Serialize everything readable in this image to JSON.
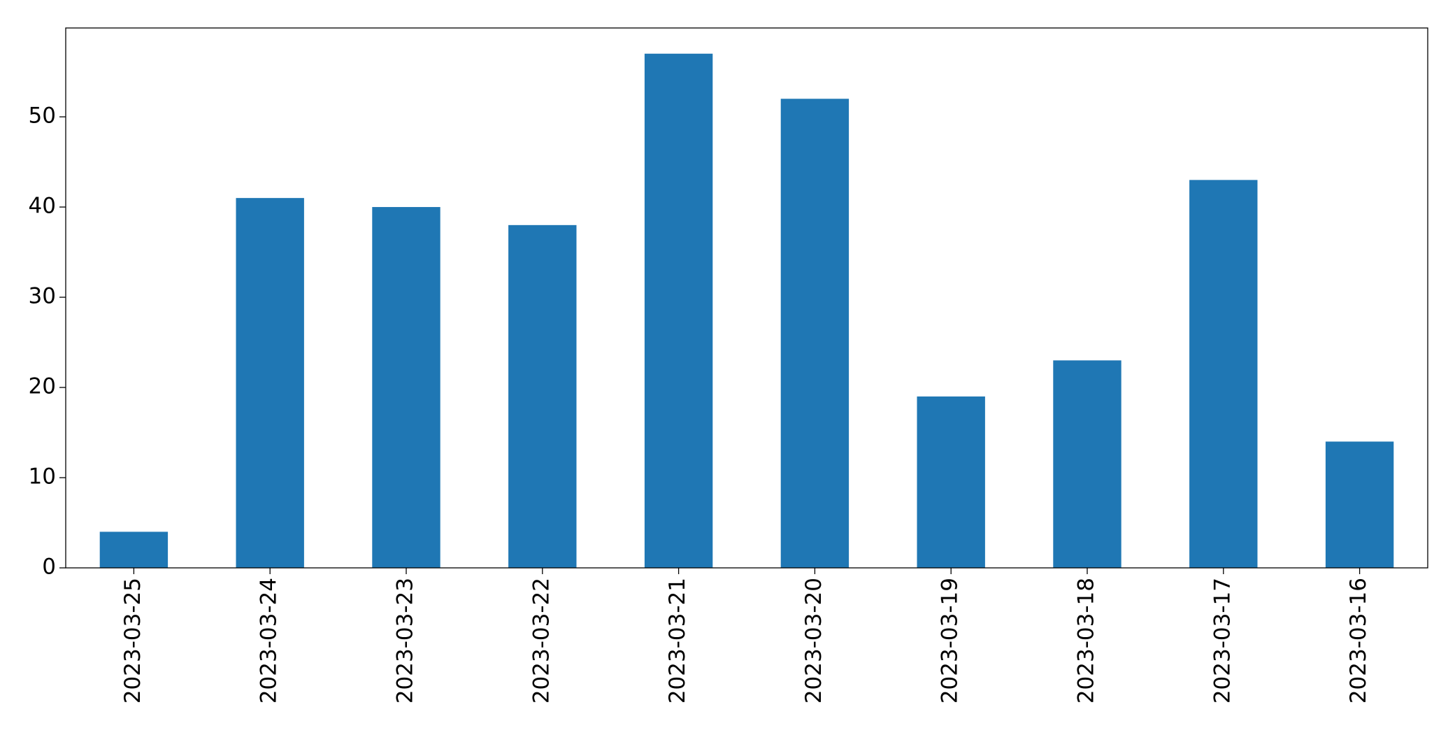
{
  "chart_data": {
    "type": "bar",
    "categories": [
      "2023-03-25",
      "2023-03-24",
      "2023-03-23",
      "2023-03-22",
      "2023-03-21",
      "2023-03-20",
      "2023-03-19",
      "2023-03-18",
      "2023-03-17",
      "2023-03-16"
    ],
    "values": [
      4,
      41,
      40,
      38,
      57,
      52,
      19,
      23,
      43,
      14
    ],
    "color": "#1f77b4",
    "ylim": [
      0,
      59.85
    ],
    "yticks": [
      0,
      10,
      20,
      30,
      40,
      50
    ],
    "grid": false
  }
}
